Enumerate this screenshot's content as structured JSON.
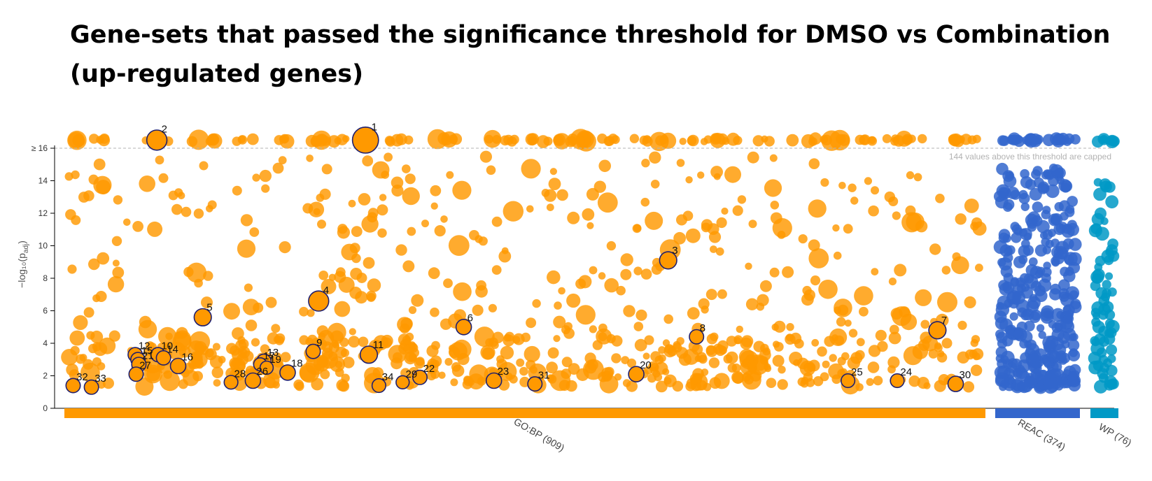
{
  "title": "Gene-sets that passed the significance threshold for DMSO vs Combination (up-regulated genes)",
  "chart_data": {
    "type": "scatter",
    "title": "Gene-sets that passed the significance threshold for DMSO vs Combination (up-regulated genes)",
    "ylabel": "−log₁₀(p",
    "ylabel_sub": "adj",
    "ylabel_close": ")",
    "ylim": [
      0,
      17.2
    ],
    "yticks": [
      {
        "v": 0,
        "label": "0"
      },
      {
        "v": 2,
        "label": "2"
      },
      {
        "v": 4,
        "label": "4"
      },
      {
        "v": 6,
        "label": "6"
      },
      {
        "v": 8,
        "label": "8"
      },
      {
        "v": 10,
        "label": "10"
      },
      {
        "v": 12,
        "label": "12"
      },
      {
        "v": 14,
        "label": "14"
      },
      {
        "v": 16,
        "label": "≥ 16"
      }
    ],
    "threshold": 16,
    "threshold_note": "144 values above this threshold are capped",
    "grid": false,
    "colors": {
      "GO:BP": "#ff9900",
      "REAC": "#3366cc",
      "WP": "#0099c6",
      "highlight_edge": "#1f1f6e"
    },
    "sources": [
      {
        "name": "GO:BP",
        "count": 909,
        "label": "GO:BP (909)",
        "color": "#ff9900"
      },
      {
        "name": "REAC",
        "count": 374,
        "label": "REAC (374)",
        "color": "#3366cc"
      },
      {
        "name": "WP",
        "count": 76,
        "label": "WP (76)",
        "color": "#0099c6"
      }
    ],
    "highlighted": [
      {
        "id": "1",
        "x": 0.3253,
        "y": 16.5,
        "size": 3
      },
      {
        "id": "2",
        "x": 0.0967,
        "y": 16.5,
        "size": 2
      },
      {
        "id": "3",
        "x": 0.657,
        "y": 9.1,
        "size": 1.5
      },
      {
        "id": "4",
        "x": 0.274,
        "y": 6.6,
        "size": 2
      },
      {
        "id": "5",
        "x": 0.147,
        "y": 5.6,
        "size": 1.5
      },
      {
        "id": "6",
        "x": 0.433,
        "y": 5.0,
        "size": 1.2
      },
      {
        "id": "7",
        "x": 0.952,
        "y": 4.8,
        "size": 1.5
      },
      {
        "id": "8",
        "x": 0.688,
        "y": 4.4,
        "size": 1
      },
      {
        "id": "9",
        "x": 0.268,
        "y": 3.5,
        "size": 1
      },
      {
        "id": "10",
        "x": 0.098,
        "y": 3.3,
        "size": 1
      },
      {
        "id": "11",
        "x": 0.329,
        "y": 3.3,
        "size": 1.5
      },
      {
        "id": "12",
        "x": 0.073,
        "y": 3.3,
        "size": 1
      },
      {
        "id": "13",
        "x": 0.214,
        "y": 2.9,
        "size": 1
      },
      {
        "id": "14",
        "x": 0.104,
        "y": 3.1,
        "size": 1
      },
      {
        "id": "15",
        "x": 0.076,
        "y": 3.0,
        "size": 1
      },
      {
        "id": "16",
        "x": 0.12,
        "y": 2.6,
        "size": 1.2
      },
      {
        "id": "17",
        "x": 0.21,
        "y": 2.7,
        "size": 0.8
      },
      {
        "id": "18",
        "x": 0.24,
        "y": 2.2,
        "size": 1.2
      },
      {
        "id": "19",
        "x": 0.217,
        "y": 2.5,
        "size": 0.8
      },
      {
        "id": "20",
        "x": 0.622,
        "y": 2.1,
        "size": 1.2
      },
      {
        "id": "21",
        "x": 0.077,
        "y": 2.7,
        "size": 1
      },
      {
        "id": "22",
        "x": 0.385,
        "y": 1.9,
        "size": 1
      },
      {
        "id": "23",
        "x": 0.466,
        "y": 1.7,
        "size": 1.2
      },
      {
        "id": "24",
        "x": 0.908,
        "y": 1.7,
        "size": 0.9
      },
      {
        "id": "25",
        "x": 0.854,
        "y": 1.7,
        "size": 0.9
      },
      {
        "id": "26",
        "x": 0.202,
        "y": 1.7,
        "size": 1.2
      },
      {
        "id": "27",
        "x": 0.074,
        "y": 2.1,
        "size": 1
      },
      {
        "id": "28",
        "x": 0.178,
        "y": 1.6,
        "size": 0.9
      },
      {
        "id": "29",
        "x": 0.366,
        "y": 1.6,
        "size": 0.8
      },
      {
        "id": "30",
        "x": 0.972,
        "y": 1.5,
        "size": 1.2
      },
      {
        "id": "31",
        "x": 0.511,
        "y": 1.5,
        "size": 1
      },
      {
        "id": "32",
        "x": 0.005,
        "y": 1.4,
        "size": 1
      },
      {
        "id": "33",
        "x": 0.025,
        "y": 1.3,
        "size": 1
      },
      {
        "id": "34",
        "x": 0.34,
        "y": 1.4,
        "size": 0.9
      }
    ]
  }
}
